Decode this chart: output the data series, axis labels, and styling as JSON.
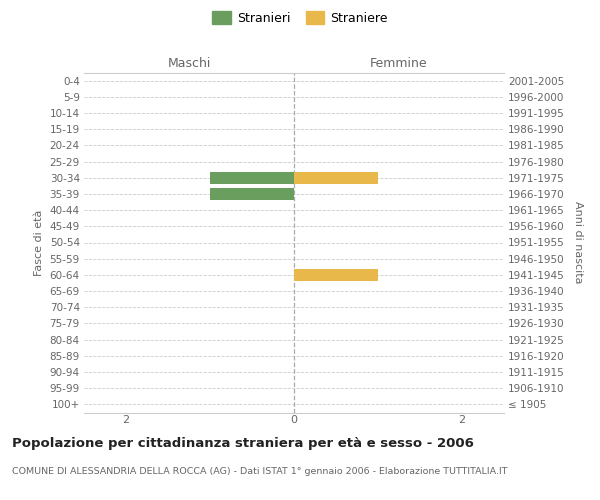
{
  "age_groups": [
    "100+",
    "95-99",
    "90-94",
    "85-89",
    "80-84",
    "75-79",
    "70-74",
    "65-69",
    "60-64",
    "55-59",
    "50-54",
    "45-49",
    "40-44",
    "35-39",
    "30-34",
    "25-29",
    "20-24",
    "15-19",
    "10-14",
    "5-9",
    "0-4"
  ],
  "birth_years": [
    "≤ 1905",
    "1906-1910",
    "1911-1915",
    "1916-1920",
    "1921-1925",
    "1926-1930",
    "1931-1935",
    "1936-1940",
    "1941-1945",
    "1946-1950",
    "1951-1955",
    "1956-1960",
    "1961-1965",
    "1966-1970",
    "1971-1975",
    "1976-1980",
    "1981-1985",
    "1986-1990",
    "1991-1995",
    "1996-2000",
    "2001-2005"
  ],
  "males": [
    0,
    0,
    0,
    0,
    0,
    0,
    0,
    0,
    0,
    0,
    0,
    0,
    0,
    1,
    1,
    0,
    0,
    0,
    0,
    0,
    0
  ],
  "females": [
    0,
    0,
    0,
    0,
    0,
    0,
    0,
    0,
    1,
    0,
    0,
    0,
    0,
    0,
    1,
    0,
    0,
    0,
    0,
    0,
    0
  ],
  "male_color": "#6a9e5f",
  "female_color": "#e8b84b",
  "bar_height": 0.75,
  "xlim": 2.5,
  "ylabel_left": "Fasce di età",
  "ylabel_right": "Anni di nascita",
  "header_left": "Maschi",
  "header_right": "Femmine",
  "legend_male": "Stranieri",
  "legend_female": "Straniere",
  "title": "Popolazione per cittadinanza straniera per età e sesso - 2006",
  "subtitle": "COMUNE DI ALESSANDRIA DELLA ROCCA (AG) - Dati ISTAT 1° gennaio 2006 - Elaborazione TUTTITALIA.IT",
  "bg_color": "#ffffff",
  "grid_color": "#cccccc",
  "text_color": "#666666",
  "center_line_color": "#aaaaaa"
}
